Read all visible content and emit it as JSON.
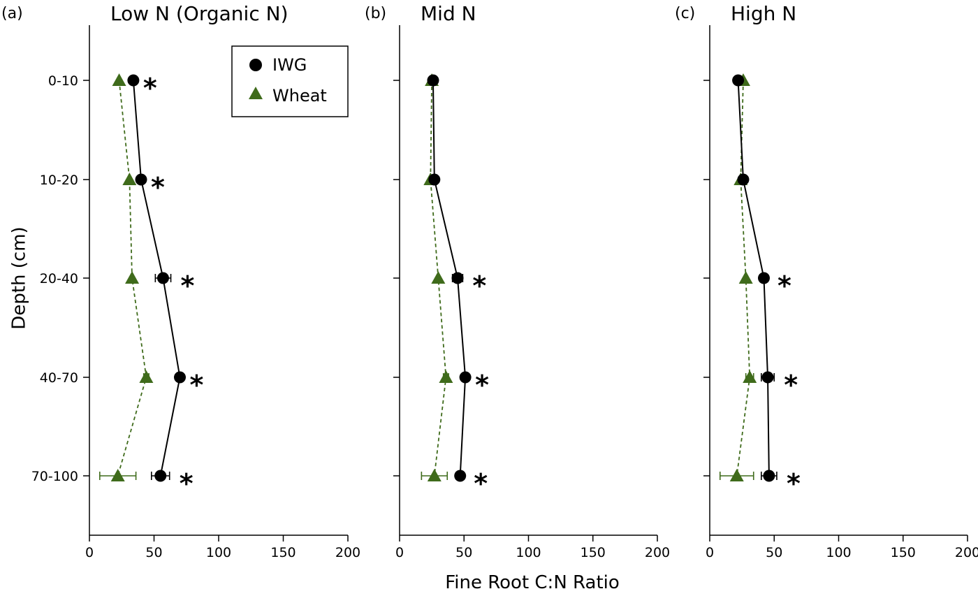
{
  "figure": {
    "ylabel": "Depth (cm)",
    "xlabel": "Fine Root C:N Ratio"
  },
  "legend": {
    "items": [
      {
        "label": "IWG",
        "marker": "circle",
        "color": "#000000"
      },
      {
        "label": "Wheat",
        "marker": "triangle",
        "color": "#3f6b1b"
      }
    ]
  },
  "colors": {
    "iwg": "#000000",
    "wheat": "#3f6b1b"
  },
  "chart_data": [
    {
      "type": "line",
      "panel": "(a)",
      "title": "Low N (Organic N)",
      "xlabel": "Fine Root C:N Ratio",
      "ylabel": "Depth (cm)",
      "xlim": [
        0,
        200
      ],
      "xticks": [
        "0",
        "50",
        "100",
        "150",
        "200"
      ],
      "categories": [
        "0-10",
        "10-20",
        "20-40",
        "40-70",
        "70-100"
      ],
      "series": [
        {
          "name": "IWG",
          "values": [
            34,
            40,
            57,
            70,
            55
          ],
          "errors": [
            0,
            0,
            6,
            0,
            7
          ]
        },
        {
          "name": "Wheat",
          "values": [
            23,
            31,
            33,
            44,
            22
          ],
          "errors": [
            0,
            0,
            0,
            2,
            14
          ]
        }
      ],
      "significance": [
        "*",
        "*",
        "*",
        "*",
        "*"
      ]
    },
    {
      "type": "line",
      "panel": "(b)",
      "title": "Mid N",
      "xlabel": "Fine Root C:N Ratio",
      "ylabel": "Depth (cm)",
      "xlim": [
        0,
        200
      ],
      "xticks": [
        "0",
        "50",
        "100",
        "150",
        "200"
      ],
      "categories": [
        "0-10",
        "10-20",
        "20-40",
        "40-70",
        "70-100"
      ],
      "series": [
        {
          "name": "IWG",
          "values": [
            26,
            27,
            45,
            51,
            47
          ],
          "errors": [
            0,
            0,
            4,
            0,
            3
          ]
        },
        {
          "name": "Wheat",
          "values": [
            25,
            24,
            30,
            36,
            27
          ],
          "errors": [
            0,
            0,
            0,
            2,
            10
          ]
        }
      ],
      "significance": [
        "",
        "",
        "*",
        "*",
        "*"
      ]
    },
    {
      "type": "line",
      "panel": "(c)",
      "title": "High N",
      "xlabel": "Fine Root C:N Ratio",
      "ylabel": "Depth (cm)",
      "xlim": [
        0,
        200
      ],
      "xticks": [
        "0",
        "50",
        "100",
        "150",
        "200"
      ],
      "categories": [
        "0-10",
        "10-20",
        "20-40",
        "40-70",
        "70-100"
      ],
      "series": [
        {
          "name": "IWG",
          "values": [
            22,
            26,
            42,
            45,
            46
          ],
          "errors": [
            0,
            0,
            3,
            5,
            6
          ]
        },
        {
          "name": "Wheat",
          "values": [
            26,
            24,
            28,
            31,
            21
          ],
          "errors": [
            0,
            0,
            0,
            3,
            13
          ]
        }
      ],
      "significance": [
        "",
        "",
        "*",
        "*",
        "*"
      ]
    }
  ]
}
